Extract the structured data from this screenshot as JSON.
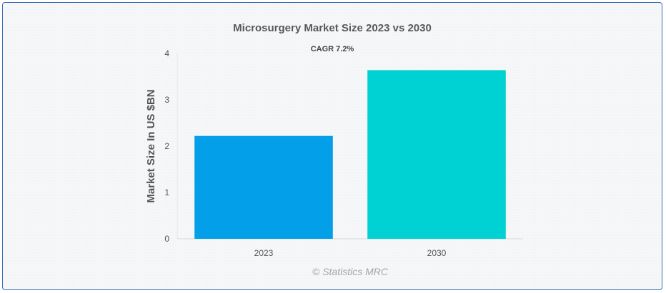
{
  "chart_data": {
    "type": "bar",
    "title": "Microsurgery Market Size 2023 vs 2030",
    "subtitle": "CAGR 7.2%",
    "categories": [
      "2023",
      "2030"
    ],
    "values": [
      2.22,
      3.64
    ],
    "colors": [
      "#039fe8",
      "#00d2d3"
    ],
    "xlabel": "",
    "ylabel": "Market Size In US $BN",
    "ylim": [
      0,
      4
    ],
    "yticks": [
      "0",
      "1",
      "2",
      "3",
      "4"
    ],
    "grid": false,
    "legend": "none"
  },
  "credit": "© Statistics MRC"
}
